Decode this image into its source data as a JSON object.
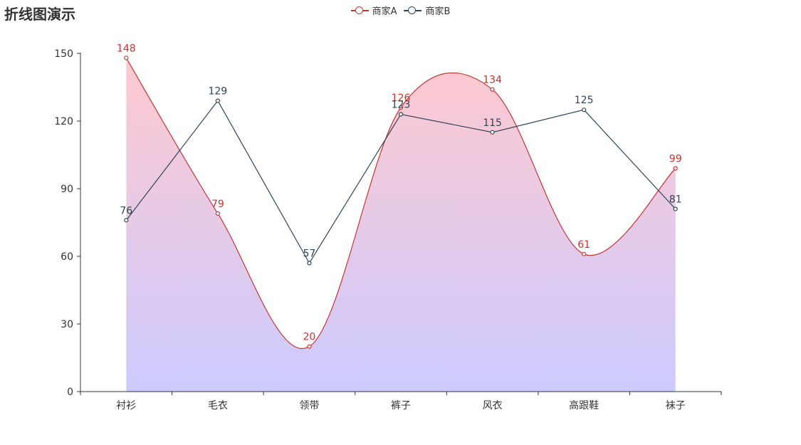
{
  "title": "折线图演示",
  "legend": [
    "商家A",
    "商家B"
  ],
  "colors": {
    "series_a": "#c23531",
    "series_b": "#2f4554",
    "area_top": "#ffc9cf",
    "area_bottom": "#cccbff",
    "axis": "#333333"
  },
  "chart_data": {
    "type": "line",
    "categories": [
      "衬衫",
      "毛衣",
      "领带",
      "裤子",
      "风衣",
      "高跟鞋",
      "袜子"
    ],
    "yticks": [
      "0",
      "30",
      "60",
      "90",
      "120",
      "150"
    ],
    "ylim": [
      0,
      150
    ],
    "legend_position": "top-center",
    "grid": false,
    "series": [
      {
        "name": "商家A",
        "values": [
          148,
          79,
          20,
          126,
          134,
          61,
          99
        ],
        "smooth": true,
        "area": true
      },
      {
        "name": "商家B",
        "values": [
          76,
          129,
          57,
          123,
          115,
          125,
          81
        ],
        "smooth": false,
        "area": false
      }
    ]
  }
}
